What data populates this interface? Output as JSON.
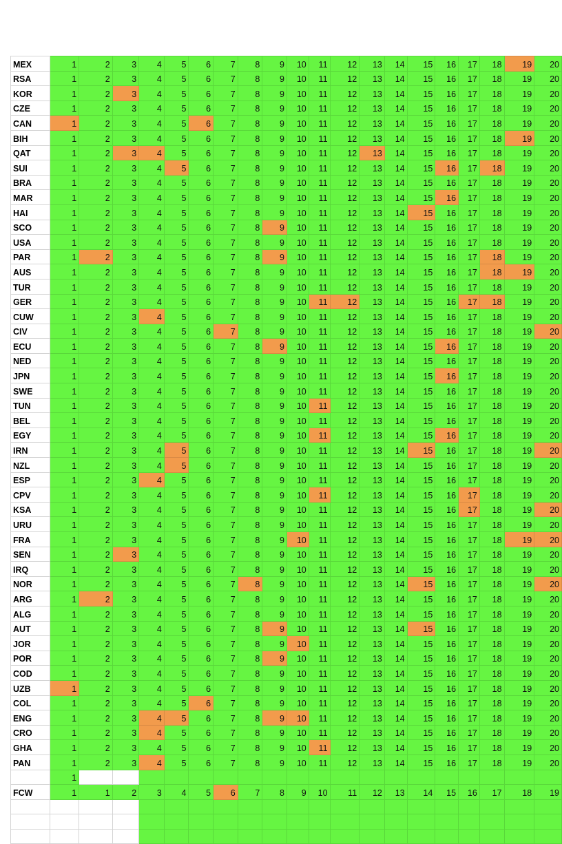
{
  "colors": {
    "green": "#66f542",
    "orange": "#f29b4c",
    "white": "#ffffff"
  },
  "numbers": [
    "1",
    "2",
    "3",
    "4",
    "5",
    "6",
    "7",
    "8",
    "9",
    "10",
    "11",
    "12",
    "13",
    "14",
    "15",
    "16",
    "17",
    "18",
    "19",
    "20"
  ],
  "rows": [
    {
      "code": "MEX",
      "hl": [
        19
      ]
    },
    {
      "code": "RSA",
      "hl": []
    },
    {
      "code": "KOR",
      "hl": [
        3
      ]
    },
    {
      "code": "CZE",
      "hl": []
    },
    {
      "code": "CAN",
      "hl": [
        1,
        6
      ]
    },
    {
      "code": "BIH",
      "hl": [
        19
      ]
    },
    {
      "code": "QAT",
      "hl": [
        3,
        4,
        13
      ]
    },
    {
      "code": "SUI",
      "hl": [
        5,
        16,
        18
      ]
    },
    {
      "code": "BRA",
      "hl": []
    },
    {
      "code": "MAR",
      "hl": [
        16
      ]
    },
    {
      "code": "HAI",
      "hl": [
        15
      ]
    },
    {
      "code": "SCO",
      "hl": [
        9
      ]
    },
    {
      "code": "USA",
      "hl": []
    },
    {
      "code": "PAR",
      "hl": [
        2,
        9,
        18
      ]
    },
    {
      "code": "AUS",
      "hl": [
        18,
        19
      ]
    },
    {
      "code": "TUR",
      "hl": []
    },
    {
      "code": "GER",
      "hl": [
        11,
        12,
        17,
        18
      ]
    },
    {
      "code": "CUW",
      "hl": [
        4
      ]
    },
    {
      "code": "CIV",
      "hl": [
        7,
        20
      ]
    },
    {
      "code": "ECU",
      "hl": [
        9,
        16
      ]
    },
    {
      "code": "NED",
      "hl": []
    },
    {
      "code": "JPN",
      "hl": [
        16
      ]
    },
    {
      "code": "SWE",
      "hl": []
    },
    {
      "code": "TUN",
      "hl": [
        11
      ]
    },
    {
      "code": "BEL",
      "hl": []
    },
    {
      "code": "EGY",
      "hl": [
        11,
        16
      ]
    },
    {
      "code": "IRN",
      "hl": [
        5,
        15,
        20
      ]
    },
    {
      "code": "NZL",
      "hl": [
        5
      ]
    },
    {
      "code": "ESP",
      "hl": [
        4
      ]
    },
    {
      "code": "CPV",
      "hl": [
        11,
        17
      ]
    },
    {
      "code": "KSA",
      "hl": [
        17,
        20
      ]
    },
    {
      "code": "URU",
      "hl": []
    },
    {
      "code": "FRA",
      "hl": [
        10,
        19,
        20
      ]
    },
    {
      "code": "SEN",
      "hl": [
        3
      ]
    },
    {
      "code": "IRQ",
      "hl": []
    },
    {
      "code": "NOR",
      "hl": [
        8,
        15,
        20
      ]
    },
    {
      "code": "ARG",
      "hl": [
        2
      ]
    },
    {
      "code": "ALG",
      "hl": []
    },
    {
      "code": "AUT",
      "hl": [
        9,
        15
      ]
    },
    {
      "code": "JOR",
      "hl": [
        10
      ]
    },
    {
      "code": "POR",
      "hl": [
        9
      ]
    },
    {
      "code": "COD",
      "hl": []
    },
    {
      "code": "UZB",
      "hl": [
        1
      ]
    },
    {
      "code": "COL",
      "hl": [
        6
      ]
    },
    {
      "code": "ENG",
      "hl": [
        4,
        5,
        9,
        10
      ]
    },
    {
      "code": "CRO",
      "hl": [
        4
      ]
    },
    {
      "code": "GHA",
      "hl": [
        11
      ]
    },
    {
      "code": "PAN",
      "hl": [
        4
      ]
    }
  ],
  "extra_row": {
    "first": "1"
  },
  "fcw_row": {
    "code": "FCW",
    "values": [
      "1",
      "1",
      "2",
      "3",
      "4",
      "5",
      "6",
      "7",
      "8",
      "9",
      "10",
      "11",
      "12",
      "13",
      "14",
      "15",
      "16",
      "17",
      "18",
      "19"
    ],
    "hl_index": [
      6
    ]
  }
}
